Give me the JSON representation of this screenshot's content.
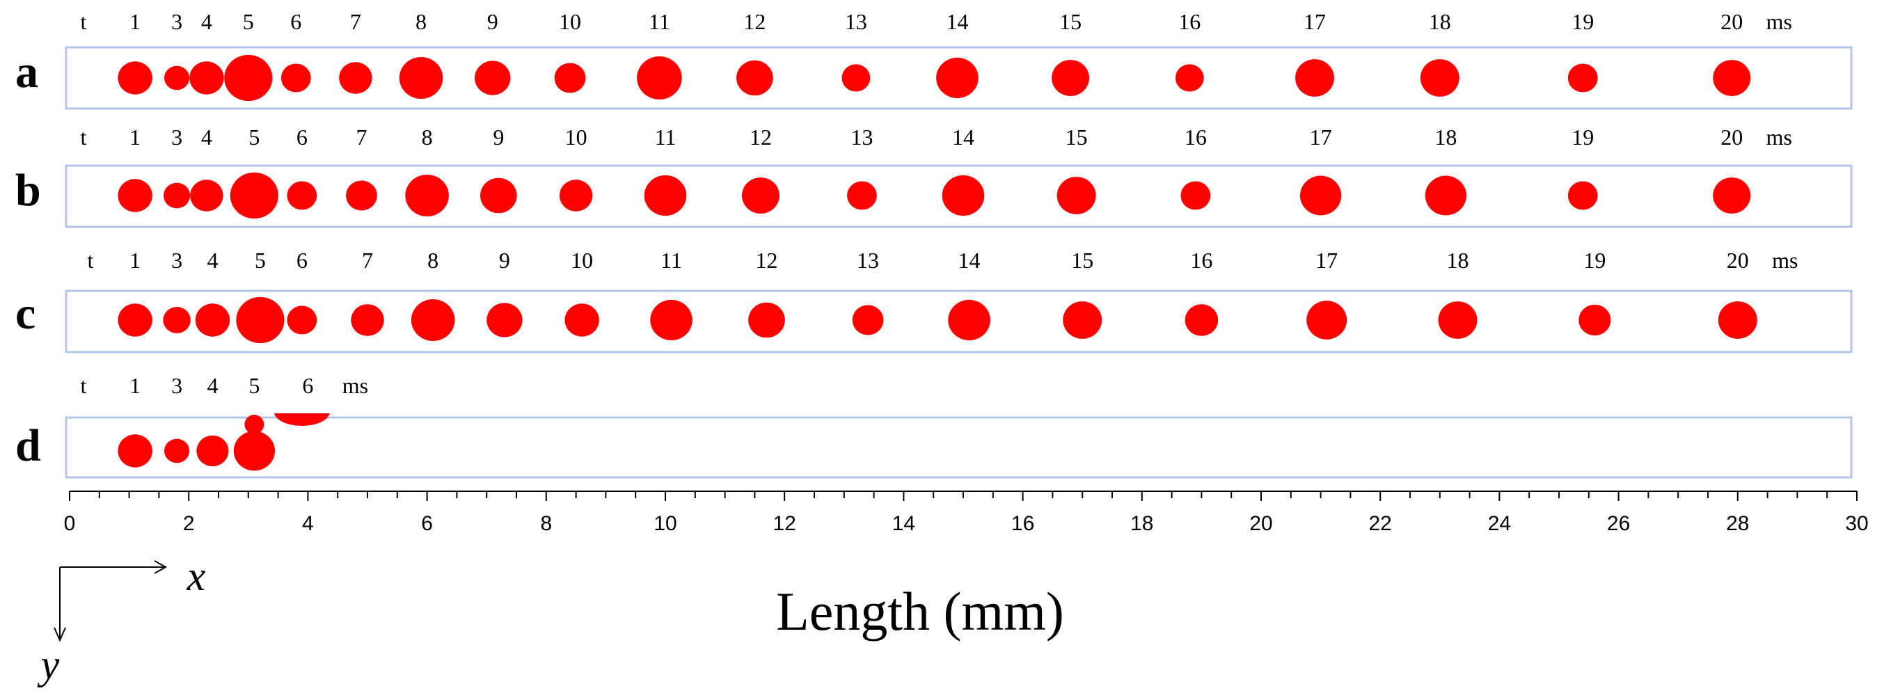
{
  "colors": {
    "droplet": "#ff0000",
    "frame": "#b4c6e7",
    "text": "#000000"
  },
  "figure": {
    "axis": {
      "title": "Length (mm)",
      "ticks": [
        "0",
        "2",
        "4",
        "6",
        "8",
        "10",
        "12",
        "14",
        "16",
        "18",
        "20",
        "22",
        "24",
        "26",
        "28",
        "30"
      ]
    },
    "coordinate_labels": {
      "x": "x",
      "y": "y"
    },
    "rows": [
      {
        "label": "a",
        "time_prefix": "t",
        "time_unit": "ms",
        "times": [
          "1",
          "3",
          "4",
          "5",
          "6",
          "7",
          "8",
          "9",
          "10",
          "11",
          "12",
          "13",
          "14",
          "15",
          "16",
          "17",
          "18",
          "19",
          "20"
        ],
        "droplets": [
          {
            "t": 1,
            "x_mm": 1.1,
            "d_mm": 0.75
          },
          {
            "t": 3,
            "x_mm": 1.8,
            "d_mm": 0.55
          },
          {
            "t": 4,
            "x_mm": 2.3,
            "d_mm": 0.75
          },
          {
            "t": 5,
            "x_mm": 3.0,
            "d_mm": 1.05
          },
          {
            "t": 6,
            "x_mm": 3.8,
            "d_mm": 0.65
          },
          {
            "t": 7,
            "x_mm": 4.8,
            "d_mm": 0.72
          },
          {
            "t": 8,
            "x_mm": 5.9,
            "d_mm": 0.95
          },
          {
            "t": 9,
            "x_mm": 7.1,
            "d_mm": 0.78
          },
          {
            "t": 10,
            "x_mm": 8.4,
            "d_mm": 0.68
          },
          {
            "t": 11,
            "x_mm": 9.9,
            "d_mm": 0.98
          },
          {
            "t": 12,
            "x_mm": 11.5,
            "d_mm": 0.8
          },
          {
            "t": 13,
            "x_mm": 13.2,
            "d_mm": 0.62
          },
          {
            "t": 14,
            "x_mm": 14.9,
            "d_mm": 0.92
          },
          {
            "t": 15,
            "x_mm": 16.8,
            "d_mm": 0.82
          },
          {
            "t": 16,
            "x_mm": 18.8,
            "d_mm": 0.62
          },
          {
            "t": 17,
            "x_mm": 20.9,
            "d_mm": 0.85
          },
          {
            "t": 18,
            "x_mm": 23.0,
            "d_mm": 0.85
          },
          {
            "t": 19,
            "x_mm": 25.4,
            "d_mm": 0.65
          },
          {
            "t": 20,
            "x_mm": 27.9,
            "d_mm": 0.82
          }
        ]
      },
      {
        "label": "b",
        "time_prefix": "t",
        "time_unit": "ms",
        "times": [
          "1",
          "3",
          "4",
          "5",
          "6",
          "7",
          "8",
          "9",
          "10",
          "11",
          "12",
          "13",
          "14",
          "15",
          "16",
          "17",
          "18",
          "19",
          "20"
        ],
        "droplets": [
          {
            "t": 1,
            "x_mm": 1.1,
            "d_mm": 0.75
          },
          {
            "t": 3,
            "x_mm": 1.8,
            "d_mm": 0.58
          },
          {
            "t": 4,
            "x_mm": 2.3,
            "d_mm": 0.72
          },
          {
            "t": 5,
            "x_mm": 3.1,
            "d_mm": 1.05
          },
          {
            "t": 6,
            "x_mm": 3.9,
            "d_mm": 0.65
          },
          {
            "t": 7,
            "x_mm": 4.9,
            "d_mm": 0.68
          },
          {
            "t": 8,
            "x_mm": 6.0,
            "d_mm": 0.95
          },
          {
            "t": 9,
            "x_mm": 7.2,
            "d_mm": 0.8
          },
          {
            "t": 10,
            "x_mm": 8.5,
            "d_mm": 0.72
          },
          {
            "t": 11,
            "x_mm": 10.0,
            "d_mm": 0.92
          },
          {
            "t": 12,
            "x_mm": 11.6,
            "d_mm": 0.82
          },
          {
            "t": 13,
            "x_mm": 13.3,
            "d_mm": 0.65
          },
          {
            "t": 14,
            "x_mm": 15.0,
            "d_mm": 0.92
          },
          {
            "t": 15,
            "x_mm": 16.9,
            "d_mm": 0.85
          },
          {
            "t": 16,
            "x_mm": 18.9,
            "d_mm": 0.65
          },
          {
            "t": 17,
            "x_mm": 21.0,
            "d_mm": 0.9
          },
          {
            "t": 18,
            "x_mm": 23.1,
            "d_mm": 0.9
          },
          {
            "t": 19,
            "x_mm": 25.4,
            "d_mm": 0.65
          },
          {
            "t": 20,
            "x_mm": 27.9,
            "d_mm": 0.82
          }
        ]
      },
      {
        "label": "c",
        "time_prefix": "t",
        "time_unit": "ms",
        "times": [
          "1",
          "3",
          "4",
          "5",
          "6",
          "7",
          "8",
          "9",
          "10",
          "11",
          "12",
          "13",
          "14",
          "15",
          "16",
          "17",
          "18",
          "19",
          "20"
        ],
        "droplets": [
          {
            "t": 1,
            "x_mm": 1.1,
            "d_mm": 0.75
          },
          {
            "t": 3,
            "x_mm": 1.8,
            "d_mm": 0.6
          },
          {
            "t": 4,
            "x_mm": 2.4,
            "d_mm": 0.75
          },
          {
            "t": 5,
            "x_mm": 3.2,
            "d_mm": 1.05
          },
          {
            "t": 6,
            "x_mm": 3.9,
            "d_mm": 0.65
          },
          {
            "t": 7,
            "x_mm": 5.0,
            "d_mm": 0.72
          },
          {
            "t": 8,
            "x_mm": 6.1,
            "d_mm": 0.95
          },
          {
            "t": 9,
            "x_mm": 7.3,
            "d_mm": 0.78
          },
          {
            "t": 10,
            "x_mm": 8.6,
            "d_mm": 0.75
          },
          {
            "t": 11,
            "x_mm": 10.1,
            "d_mm": 0.92
          },
          {
            "t": 12,
            "x_mm": 11.7,
            "d_mm": 0.8
          },
          {
            "t": 13,
            "x_mm": 13.4,
            "d_mm": 0.68
          },
          {
            "t": 14,
            "x_mm": 15.1,
            "d_mm": 0.92
          },
          {
            "t": 15,
            "x_mm": 17.0,
            "d_mm": 0.85
          },
          {
            "t": 16,
            "x_mm": 19.0,
            "d_mm": 0.72
          },
          {
            "t": 17,
            "x_mm": 21.1,
            "d_mm": 0.88
          },
          {
            "t": 18,
            "x_mm": 23.3,
            "d_mm": 0.85
          },
          {
            "t": 19,
            "x_mm": 25.6,
            "d_mm": 0.7
          },
          {
            "t": 20,
            "x_mm": 28.0,
            "d_mm": 0.85
          }
        ]
      },
      {
        "label": "d",
        "time_prefix": "t",
        "time_unit": "ms",
        "times": [
          "1",
          "3",
          "4",
          "5",
          "6"
        ],
        "droplets": [
          {
            "t": 1,
            "x_mm": 1.1,
            "d_mm": 0.75
          },
          {
            "t": 3,
            "x_mm": 1.8,
            "d_mm": 0.55
          },
          {
            "t": 4,
            "x_mm": 2.4,
            "d_mm": 0.7
          },
          {
            "t": 5,
            "x_mm": 3.1,
            "d_mm": 0.9
          }
        ]
      }
    ]
  }
}
